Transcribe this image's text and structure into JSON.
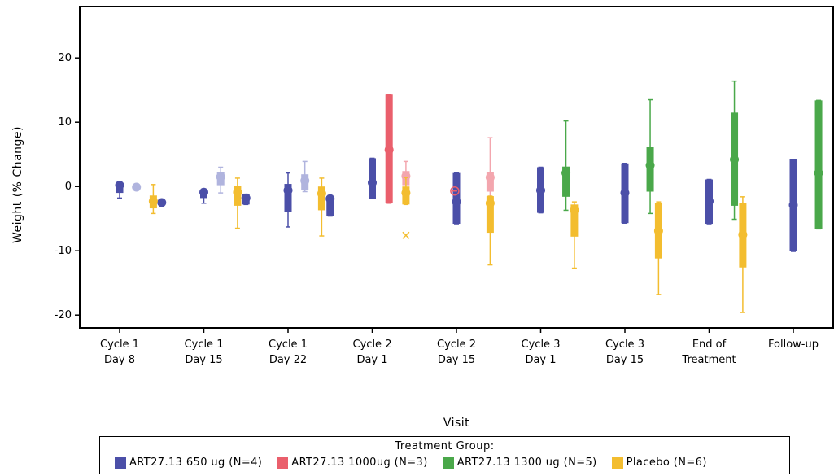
{
  "chart_data": {
    "type": "boxplot",
    "xlabel": "Visit",
    "ylabel": "Weight (%   Change)",
    "ylim": [
      -22,
      28
    ],
    "yticks": [
      -20,
      -10,
      0,
      10,
      20
    ],
    "categories": [
      [
        "Cycle 1",
        "Day 8"
      ],
      [
        "Cycle 1",
        "Day 15"
      ],
      [
        "Cycle 1",
        "Day 22"
      ],
      [
        "Cycle 2",
        "Day 1"
      ],
      [
        "Cycle 2",
        "Day 15"
      ],
      [
        "Cycle 3",
        "Day 1"
      ],
      [
        "Cycle 3",
        "Day 15"
      ],
      [
        "End of",
        "Treatment"
      ],
      [
        "Follow-up",
        ""
      ]
    ],
    "legend_title": "Treatment Group:",
    "legend_position": "bottom",
    "series": [
      {
        "name": "ART27.13 650 ug (N=4)",
        "color": "#4b4fa8",
        "boxes": [
          {
            "cat": 0,
            "whisker": [
              -1.8,
              0.6
            ],
            "box": [
              -1.0,
              0.6
            ],
            "median": 0.2
          },
          {
            "cat": 0.5,
            "whisker": null,
            "box": null,
            "median": -2.5
          },
          {
            "cat": 1,
            "whisker": [
              -2.6,
              -0.6
            ],
            "box": [
              -1.8,
              -0.6
            ],
            "median": -0.9
          },
          {
            "cat": 1.5,
            "whisker": [
              -2.8,
              -1.2
            ],
            "box": [
              -2.8,
              -1.2
            ],
            "median": -1.8
          },
          {
            "cat": 2,
            "whisker": [
              -6.3,
              2.1
            ],
            "box": [
              -3.9,
              0.4
            ],
            "median": -0.6
          },
          {
            "cat": 2.5,
            "whisker": [
              -4.6,
              -1.5
            ],
            "box": [
              -4.6,
              -1.5
            ],
            "median": -1.9
          },
          {
            "cat": 3,
            "whisker": [
              -1.9,
              4.4
            ],
            "box": [
              -1.9,
              4.4
            ],
            "median": 0.6
          },
          {
            "cat": 4,
            "whisker": [
              -5.8,
              2.1
            ],
            "box": [
              -5.8,
              2.1
            ],
            "median": -2.4
          },
          {
            "cat": 5,
            "whisker": [
              -4.1,
              3.0
            ],
            "box": [
              -4.1,
              3.0
            ],
            "median": -0.6
          },
          {
            "cat": 6,
            "whisker": [
              -5.7,
              3.6
            ],
            "box": [
              -5.7,
              3.6
            ],
            "median": -1.0
          },
          {
            "cat": 7,
            "whisker": [
              -5.8,
              1.1
            ],
            "box": [
              -5.8,
              1.1
            ],
            "median": -2.3
          },
          {
            "cat": 8,
            "whisker": [
              -10.1,
              4.2
            ],
            "box": [
              -10.1,
              4.2
            ],
            "median": -2.9
          }
        ]
      },
      {
        "name": "ART27.13 650 ug (N=4) light",
        "color": "#b0b4de",
        "legend": false,
        "boxes": [
          {
            "cat": 0.2,
            "whisker": null,
            "box": null,
            "median": -0.1
          },
          {
            "cat": 1.2,
            "whisker": [
              -1.0,
              3.0
            ],
            "box": [
              0.2,
              2.2
            ],
            "median": 1.5
          },
          {
            "cat": 2.2,
            "whisker": [
              -0.8,
              3.9
            ],
            "box": [
              -0.6,
              1.9
            ],
            "median": 0.9
          }
        ]
      },
      {
        "name": "ART27.13 1000ug (N=3)",
        "color": "#ea5f6c",
        "boxes": [
          {
            "cat": 3.2,
            "whisker": [
              -2.6,
              14.3
            ],
            "box": [
              -2.6,
              14.3
            ],
            "median": 5.7
          }
        ]
      },
      {
        "name": "ART27.13 1000ug (N=3) light",
        "color": "#f3a6ae",
        "legend": false,
        "boxes": [
          {
            "cat": 3.4,
            "whisker": [
              -0.6,
              3.9
            ],
            "box": [
              0.2,
              2.4
            ],
            "median": 1.6
          },
          {
            "cat": 4.4,
            "whisker": [
              -2.7,
              7.6
            ],
            "box": [
              -0.8,
              2.2
            ],
            "median": 1.4
          }
        ]
      },
      {
        "name": "ART27.13 1300 ug (N=5)",
        "color": "#4aa84a",
        "boxes": [
          {
            "cat": 5.3,
            "whisker": [
              -3.7,
              10.2
            ],
            "box": [
              -1.6,
              3.1
            ],
            "median": 2.1
          },
          {
            "cat": 6.3,
            "whisker": [
              -4.2,
              13.5
            ],
            "box": [
              -0.8,
              6.1
            ],
            "median": 3.3
          },
          {
            "cat": 7.3,
            "whisker": [
              -5.1,
              16.4
            ],
            "box": [
              -3.0,
              11.5
            ],
            "median": 4.2
          },
          {
            "cat": 8.3,
            "whisker": [
              -6.6,
              13.4
            ],
            "box": [
              -6.6,
              13.4
            ],
            "median": 2.1
          }
        ]
      },
      {
        "name": "Placebo (N=6)",
        "color": "#f3bd2f",
        "boxes": [
          {
            "cat": 0.4,
            "whisker": [
              -4.2,
              0.3
            ],
            "box": [
              -3.4,
              -1.4
            ],
            "median": -2.3
          },
          {
            "cat": 1.4,
            "whisker": [
              -6.5,
              1.3
            ],
            "box": [
              -3.0,
              0.1
            ],
            "median": -0.9
          },
          {
            "cat": 2.4,
            "whisker": [
              -7.7,
              1.3
            ],
            "box": [
              -3.7,
              0.0
            ],
            "median": -1.1
          },
          {
            "cat": 3.4,
            "whisker": [
              -2.8,
              1.4
            ],
            "box": [
              -2.8,
              0.0
            ],
            "median": -1.0
          },
          {
            "cat": 4.4,
            "whisker": [
              -12.2,
              -1.5
            ],
            "box": [
              -7.2,
              -1.5
            ],
            "median": -2.6
          },
          {
            "cat": 5.4,
            "whisker": [
              -12.7,
              -2.4
            ],
            "box": [
              -7.8,
              -2.8
            ],
            "median": -3.7
          },
          {
            "cat": 6.4,
            "whisker": [
              -16.8,
              -2.4
            ],
            "box": [
              -11.2,
              -2.6
            ],
            "median": -6.9
          },
          {
            "cat": 7.4,
            "whisker": [
              -19.6,
              -1.6
            ],
            "box": [
              -12.6,
              -2.6
            ],
            "median": -7.5
          }
        ]
      }
    ],
    "outliers": [
      {
        "cat": 3.4,
        "y": -7.6,
        "marker": "x",
        "color": "#f3bd2f"
      },
      {
        "cat": 3.98,
        "y": -0.7,
        "marker": "circle-minus",
        "color": "#ea5f6c"
      }
    ],
    "legend_items": [
      {
        "label": "ART27.13 650 ug (N=4)",
        "color": "#4b4fa8"
      },
      {
        "label": "ART27.13 1000ug (N=3)",
        "color": "#ea5f6c"
      },
      {
        "label": "ART27.13 1300 ug (N=5)",
        "color": "#4aa84a"
      },
      {
        "label": "Placebo  (N=6)",
        "color": "#f3bd2f"
      }
    ]
  }
}
